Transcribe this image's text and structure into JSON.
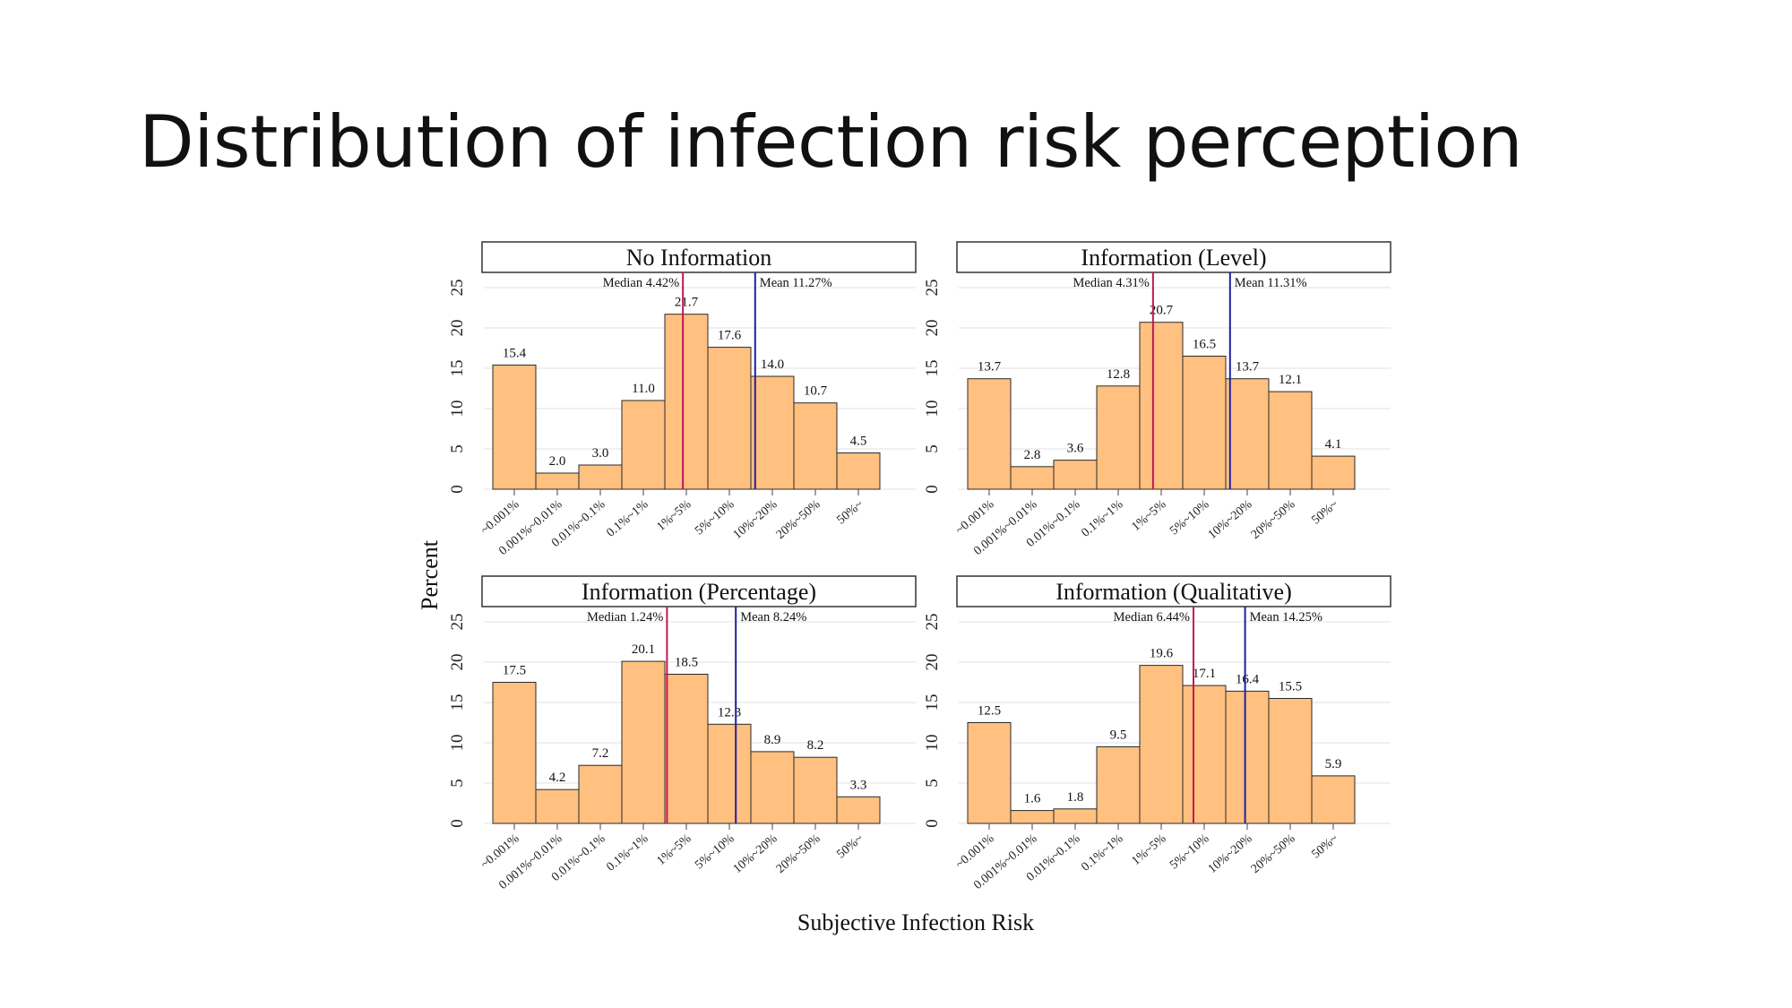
{
  "slide": {
    "title": "Distribution of infection risk perception"
  },
  "figure": {
    "ylabel": "Percent",
    "xlabel": "Subjective Infection Risk"
  },
  "colors": {
    "bar_fill": "#FFC080",
    "bar_stroke": "#2a2a2a",
    "median_line": "#C0185A",
    "mean_line": "#2020A0",
    "grid": "#E6E6E6"
  },
  "chart_data": [
    {
      "type": "bar",
      "title": "No Information",
      "categories": [
        "~0.001%",
        "0.001%~0.01%",
        "0.01%~0.1%",
        "0.1%~1%",
        "1%~5%",
        "5%~10%",
        "10%~20%",
        "20%~50%",
        "50%~"
      ],
      "values": [
        15.4,
        2.0,
        3.0,
        11.0,
        21.7,
        17.6,
        14.0,
        10.7,
        4.5
      ],
      "value_labels": [
        "15.4",
        "2.0",
        "3.0",
        "11.0",
        "21.7",
        "17.6",
        "14.0",
        "10.7",
        "4.5"
      ],
      "ylim": [
        0,
        25
      ],
      "yticks": [
        "0",
        "5",
        "10",
        "15",
        "20",
        "25"
      ],
      "median": {
        "label": "Median 4.42%",
        "position": 4.42
      },
      "mean": {
        "label": "Mean 11.27%",
        "position": 6.1
      }
    },
    {
      "type": "bar",
      "title": "Information (Level)",
      "categories": [
        "~0.001%",
        "0.001%~0.01%",
        "0.01%~0.1%",
        "0.1%~1%",
        "1%~5%",
        "5%~10%",
        "10%~20%",
        "20%~50%",
        "50%~"
      ],
      "values": [
        13.7,
        2.8,
        3.6,
        12.8,
        20.7,
        16.5,
        13.7,
        12.1,
        4.1
      ],
      "value_labels": [
        "13.7",
        "2.8",
        "3.6",
        "12.8",
        "20.7",
        "16.5",
        "13.7",
        "12.1",
        "4.1"
      ],
      "ylim": [
        0,
        25
      ],
      "yticks": [
        "0",
        "5",
        "10",
        "15",
        "20",
        "25"
      ],
      "median": {
        "label": "Median 4.31%",
        "position": 4.31
      },
      "mean": {
        "label": "Mean 11.31%",
        "position": 6.1
      }
    },
    {
      "type": "bar",
      "title": "Information (Percentage)",
      "categories": [
        "~0.001%",
        "0.001%~0.01%",
        "0.01%~0.1%",
        "0.1%~1%",
        "1%~5%",
        "5%~10%",
        "10%~20%",
        "20%~50%",
        "50%~"
      ],
      "values": [
        17.5,
        4.2,
        7.2,
        20.1,
        18.5,
        12.3,
        8.9,
        8.2,
        3.3
      ],
      "value_labels": [
        "17.5",
        "4.2",
        "7.2",
        "20.1",
        "18.5",
        "12.3",
        "8.9",
        "8.2",
        "3.3"
      ],
      "ylim": [
        0,
        25
      ],
      "yticks": [
        "0",
        "5",
        "10",
        "15",
        "20",
        "25"
      ],
      "median": {
        "label": "Median 1.24%",
        "position": 4.05
      },
      "mean": {
        "label": "Mean 8.24%",
        "position": 5.65
      }
    },
    {
      "type": "bar",
      "title": "Information (Qualitative)",
      "categories": [
        "~0.001%",
        "0.001%~0.01%",
        "0.01%~0.1%",
        "0.1%~1%",
        "1%~5%",
        "5%~10%",
        "10%~20%",
        "20%~50%",
        "50%~"
      ],
      "values": [
        12.5,
        1.6,
        1.8,
        9.5,
        19.6,
        17.1,
        16.4,
        15.5,
        5.9
      ],
      "value_labels": [
        "12.5",
        "1.6",
        "1.8",
        "9.5",
        "19.6",
        "17.1",
        "16.4",
        "15.5",
        "5.9"
      ],
      "ylim": [
        0,
        25
      ],
      "yticks": [
        "0",
        "5",
        "10",
        "15",
        "20",
        "25"
      ],
      "median": {
        "label": "Median 6.44%",
        "position": 5.25
      },
      "mean": {
        "label": "Mean 14.25%",
        "position": 6.45
      }
    }
  ]
}
